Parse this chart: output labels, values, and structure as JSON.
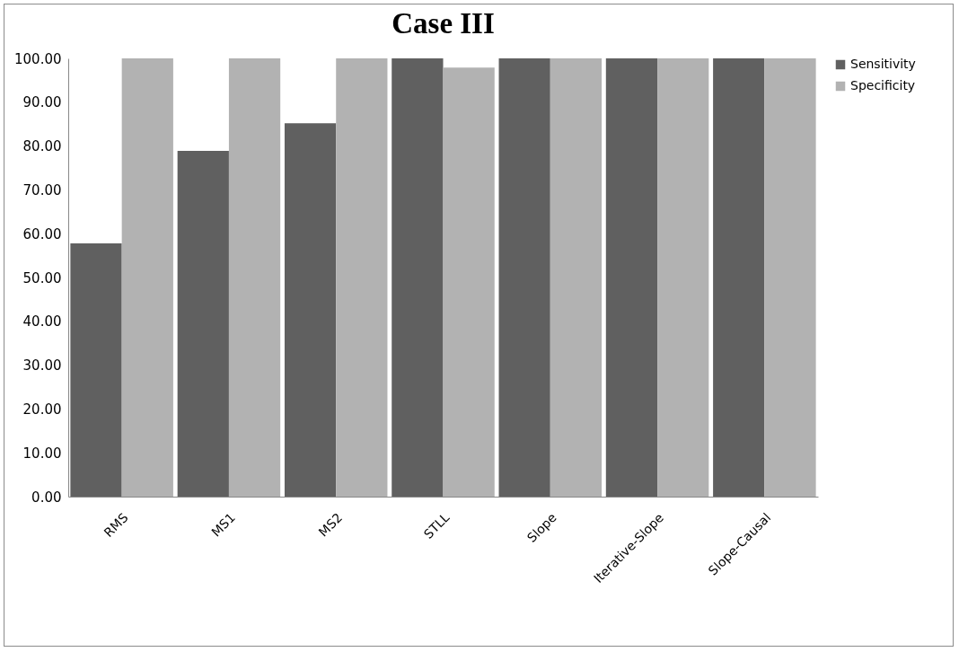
{
  "chart_data": {
    "type": "bar",
    "title": "Case III",
    "categories": [
      "RMS",
      "MS1",
      "MS2",
      "STLL",
      "Slope",
      "Iterative-Slope",
      "Slope-Causal"
    ],
    "series": [
      {
        "name": "Sensitivity",
        "color": "#606060",
        "values": [
          57.8,
          78.9,
          85.2,
          100,
          100,
          100,
          100
        ]
      },
      {
        "name": "Specificity",
        "color": "#b2b2b2",
        "values": [
          100,
          100,
          100,
          97.9,
          100,
          100,
          100
        ]
      }
    ],
    "ylim": [
      0,
      100
    ],
    "yticks": [
      {
        "value": 0,
        "label": "0.00"
      },
      {
        "value": 10,
        "label": "10.00"
      },
      {
        "value": 20,
        "label": "20.00"
      },
      {
        "value": 30,
        "label": "30.00"
      },
      {
        "value": 40,
        "label": "40.00"
      },
      {
        "value": 50,
        "label": "50.00"
      },
      {
        "value": 60,
        "label": "60.00"
      },
      {
        "value": 70,
        "label": "70.00"
      },
      {
        "value": 80,
        "label": "80.00"
      },
      {
        "value": 90,
        "label": "90.00"
      },
      {
        "value": 100,
        "label": "100.00"
      }
    ],
    "grid": false,
    "legend": "right"
  }
}
